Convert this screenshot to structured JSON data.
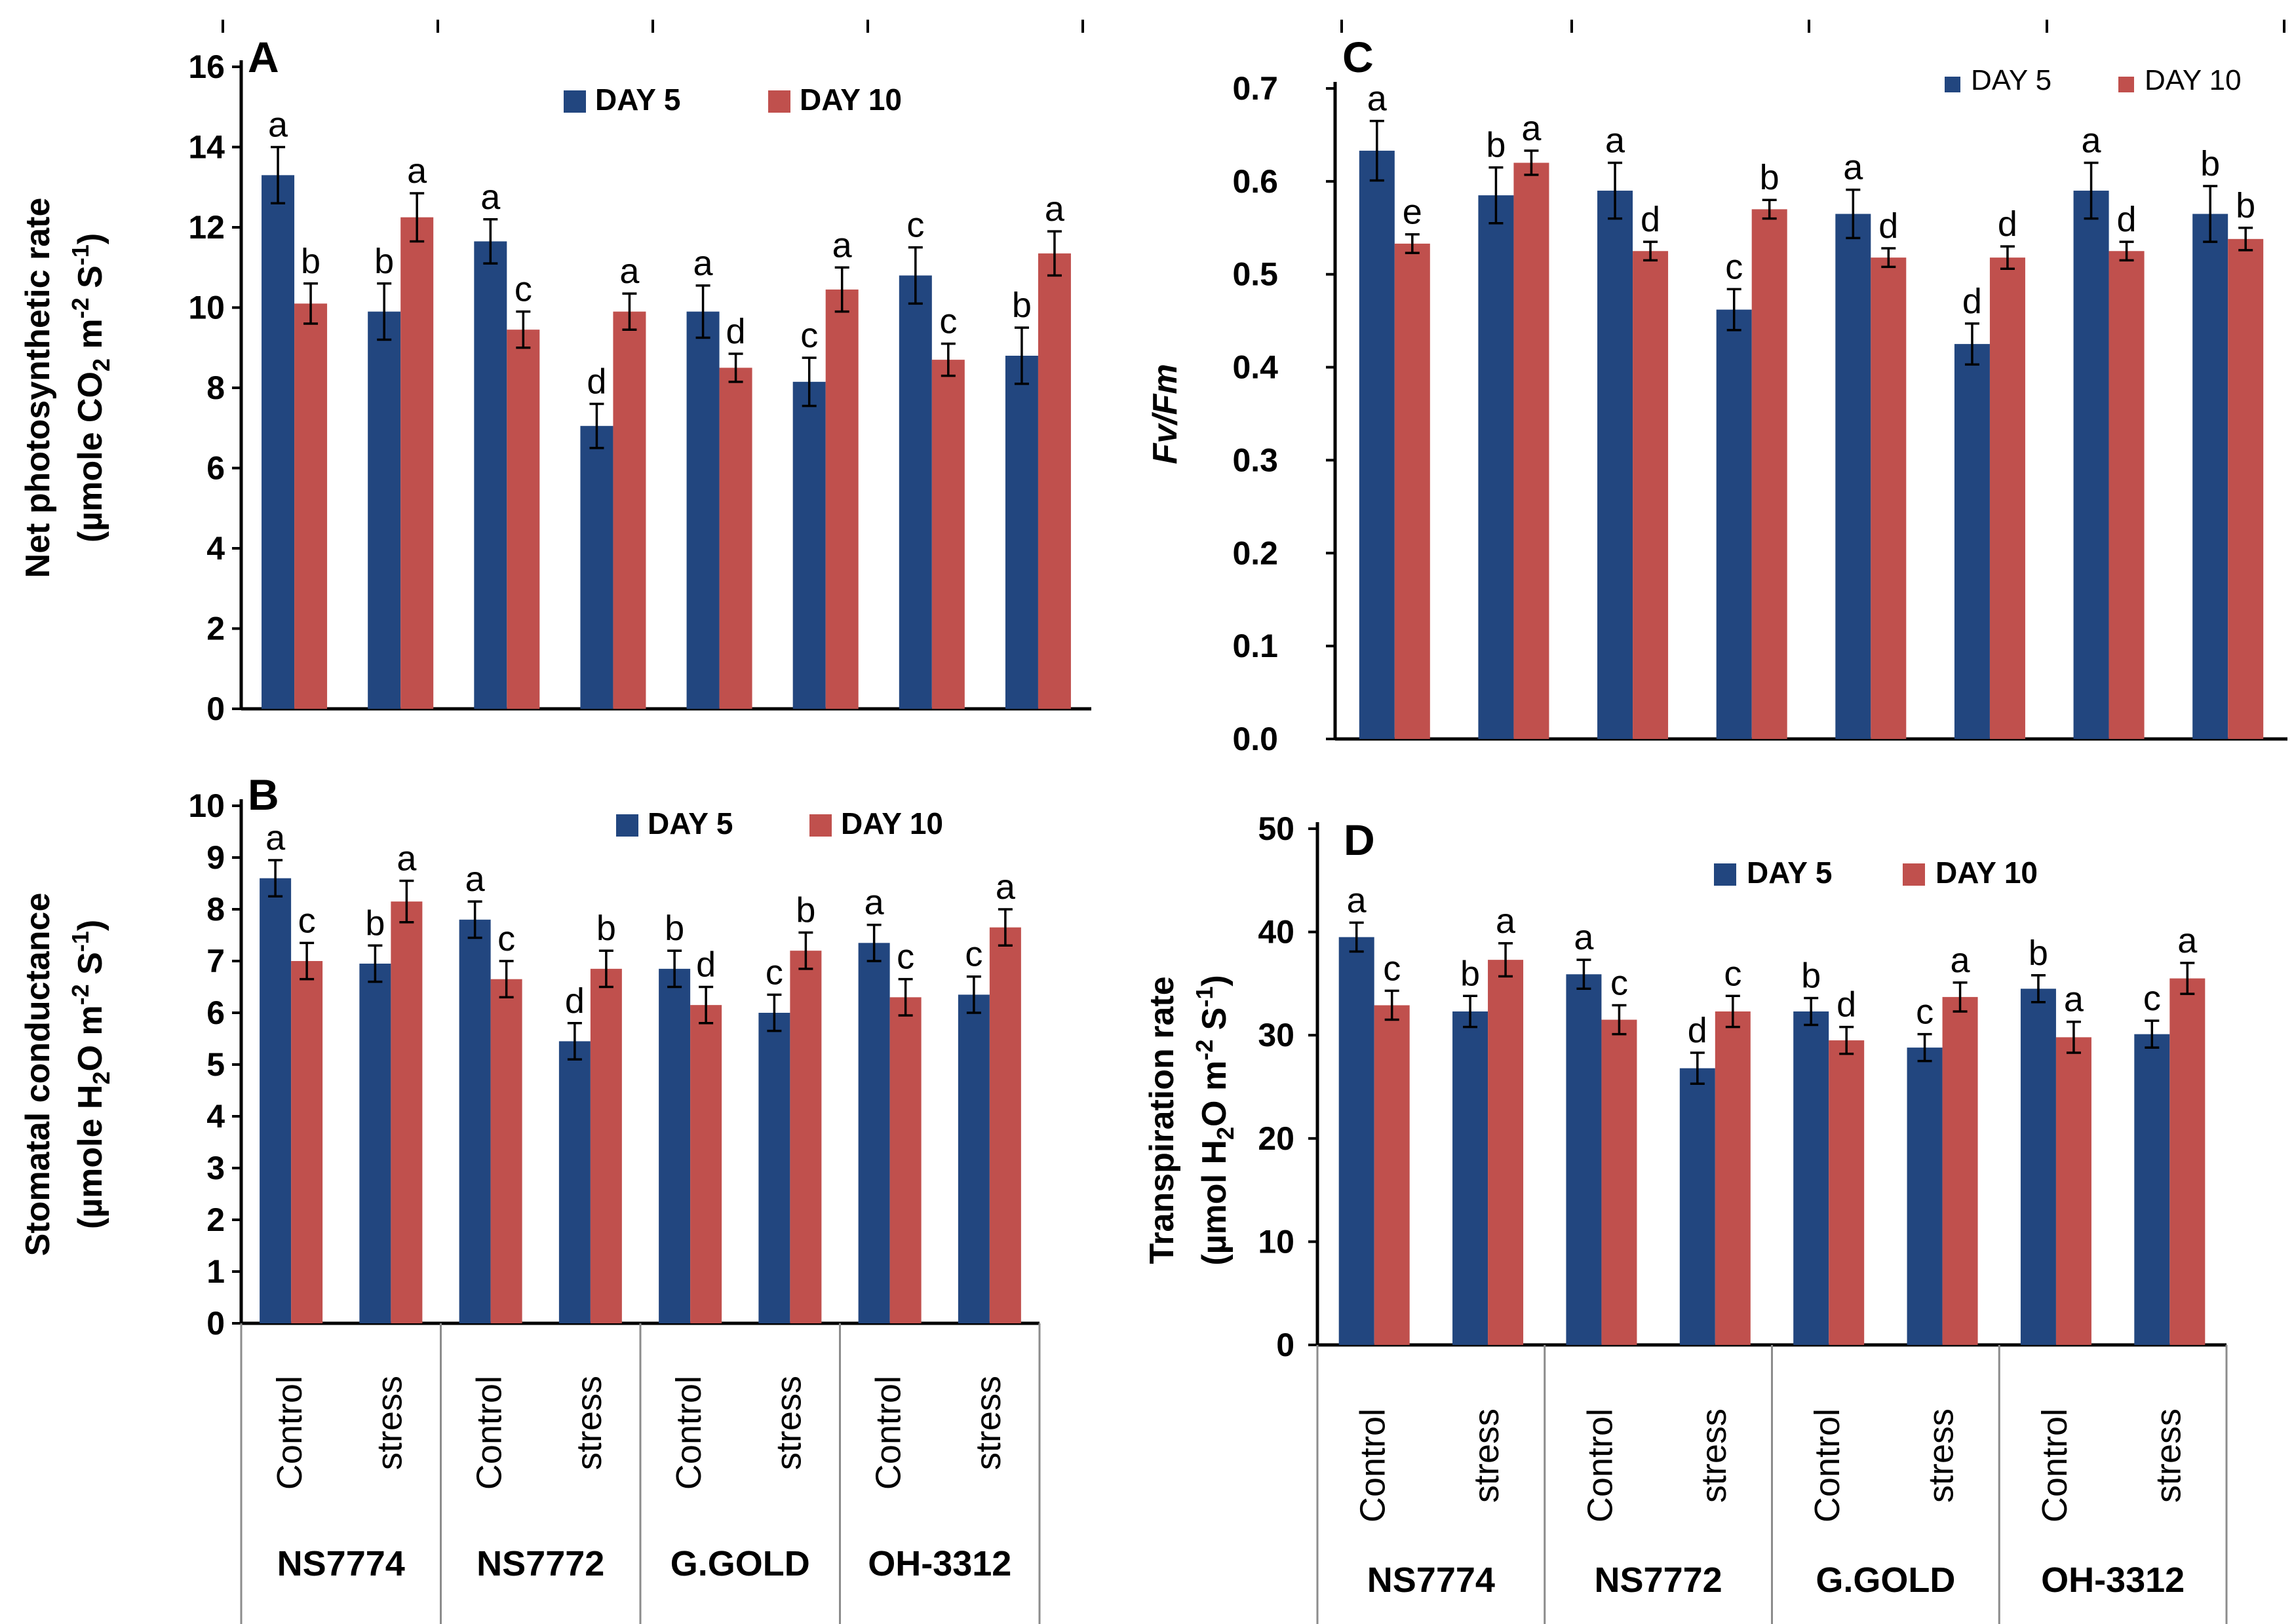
{
  "colors": {
    "day5": "#22467F",
    "day10": "#C0504D",
    "axis": "#000000",
    "grid_sep": "#8C8C8C"
  },
  "treatments": [
    "Control",
    "stress",
    "Control",
    "stress",
    "Control",
    "stress",
    "Control",
    "stress"
  ],
  "cultivars": [
    "NS7774",
    "NS7772",
    "G.GOLD",
    "OH-3312"
  ],
  "chart_data": [
    {
      "id": "A",
      "type": "bar",
      "panel_letter": "A",
      "ylabel_line1": "Net photosynthetic rate",
      "ylabel_line2_pre": "(µmole CO",
      "ylabel_line2_sub": "2",
      "ylabel_line2_mid": " m",
      "ylabel_line2_sup1": "-2",
      "ylabel_line2_mid2": " S",
      "ylabel_line2_sup2": "-1",
      "ylabel_line2_post": ")",
      "ylim": [
        0,
        16
      ],
      "yticks": [
        0,
        2,
        4,
        6,
        8,
        10,
        12,
        14,
        16
      ],
      "legend": [
        "DAY 5",
        "DAY 10"
      ],
      "series": [
        {
          "name": "DAY 5",
          "values": [
            13.3,
            9.9,
            11.65,
            7.05,
            9.9,
            8.15,
            10.8,
            8.8
          ],
          "errors": [
            0.7,
            0.7,
            0.55,
            0.55,
            0.65,
            0.6,
            0.7,
            0.7
          ],
          "letters": [
            "a",
            "b",
            "a",
            "d",
            "a",
            "c",
            "c",
            "b"
          ]
        },
        {
          "name": "DAY 10",
          "values": [
            10.1,
            12.25,
            9.45,
            9.9,
            8.5,
            10.45,
            8.7,
            11.35
          ],
          "errors": [
            0.5,
            0.6,
            0.45,
            0.45,
            0.35,
            0.55,
            0.4,
            0.55
          ],
          "letters": [
            "b",
            "a",
            "c",
            "a",
            "d",
            "a",
            "c",
            "a"
          ]
        }
      ]
    },
    {
      "id": "B",
      "type": "bar",
      "panel_letter": "B",
      "ylabel_line1": "Stomatal conductance",
      "ylabel_line2_pre": "(µmole H",
      "ylabel_line2_sub": "2",
      "ylabel_line2_mid": "O m",
      "ylabel_line2_sup1": "-2",
      "ylabel_line2_mid2": " S",
      "ylabel_line2_sup2": "-1",
      "ylabel_line2_post": ")",
      "ylim": [
        0,
        10
      ],
      "yticks": [
        0,
        1,
        2,
        3,
        4,
        5,
        6,
        7,
        8,
        9,
        10
      ],
      "legend": [
        "DAY 5",
        "DAY 10"
      ],
      "series": [
        {
          "name": "DAY 5",
          "values": [
            8.6,
            6.95,
            7.8,
            5.45,
            6.85,
            6.0,
            7.35,
            6.35
          ],
          "errors": [
            0.35,
            0.35,
            0.35,
            0.35,
            0.35,
            0.35,
            0.35,
            0.35
          ],
          "letters": [
            "a",
            "b",
            "a",
            "d",
            "b",
            "c",
            "a",
            "c"
          ]
        },
        {
          "name": "DAY 10",
          "values": [
            7.0,
            8.15,
            6.65,
            6.85,
            6.15,
            7.2,
            6.3,
            7.65
          ],
          "errors": [
            0.35,
            0.4,
            0.35,
            0.35,
            0.35,
            0.35,
            0.35,
            0.35
          ],
          "letters": [
            "c",
            "a",
            "c",
            "b",
            "d",
            "b",
            "c",
            "a"
          ]
        }
      ]
    },
    {
      "id": "C",
      "type": "bar",
      "panel_letter": "C",
      "ylabel_line1": "Fv/Fm",
      "ylim": [
        0,
        0.7
      ],
      "yticks": [
        0,
        0.1,
        0.2,
        0.3,
        0.4,
        0.5,
        0.6,
        0.7
      ],
      "legend": [
        "DAY 5",
        "DAY 10"
      ],
      "series": [
        {
          "name": "DAY 5",
          "values": [
            0.633,
            0.585,
            0.59,
            0.462,
            0.565,
            0.425,
            0.59,
            0.565
          ],
          "errors": [
            0.032,
            0.03,
            0.03,
            0.022,
            0.026,
            0.022,
            0.03,
            0.03
          ],
          "letters": [
            "a",
            "b",
            "a",
            "c",
            "a",
            "d",
            "a",
            "b"
          ]
        },
        {
          "name": "DAY 10",
          "values": [
            0.533,
            0.62,
            0.525,
            0.57,
            0.518,
            0.518,
            0.525,
            0.538
          ],
          "errors": [
            0.01,
            0.013,
            0.01,
            0.01,
            0.01,
            0.012,
            0.01,
            0.012
          ],
          "letters": [
            "e",
            "a",
            "d",
            "b",
            "d",
            "d",
            "d",
            "b"
          ]
        }
      ]
    },
    {
      "id": "D",
      "type": "bar",
      "panel_letter": "D",
      "ylabel_line1": "Transpiration rate",
      "ylabel_line2_pre": "(µmol H",
      "ylabel_line2_sub": "2",
      "ylabel_line2_mid": "O m",
      "ylabel_line2_sup1": "-2",
      "ylabel_line2_mid2": " S",
      "ylabel_line2_sup2": "-1",
      "ylabel_line2_post": ")",
      "ylim": [
        0,
        50
      ],
      "yticks": [
        0,
        10,
        20,
        30,
        40,
        50
      ],
      "legend": [
        "DAY 5",
        "DAY 10"
      ],
      "series": [
        {
          "name": "DAY 5",
          "values": [
            39.5,
            32.3,
            35.9,
            26.8,
            32.3,
            28.8,
            34.5,
            30.1
          ],
          "errors": [
            1.4,
            1.5,
            1.4,
            1.5,
            1.3,
            1.3,
            1.3,
            1.3
          ],
          "letters": [
            "a",
            "b",
            "a",
            "d",
            "b",
            "c",
            "b",
            "c"
          ]
        },
        {
          "name": "DAY 10",
          "values": [
            32.9,
            37.3,
            31.5,
            32.3,
            29.5,
            33.7,
            29.8,
            35.5
          ],
          "errors": [
            1.4,
            1.6,
            1.4,
            1.5,
            1.3,
            1.4,
            1.5,
            1.5
          ],
          "letters": [
            "c",
            "a",
            "c",
            "c",
            "d",
            "a",
            "a",
            "a"
          ]
        }
      ]
    }
  ]
}
